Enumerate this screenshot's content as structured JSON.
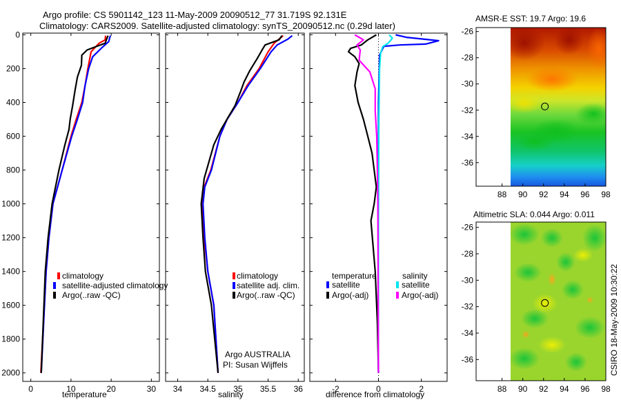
{
  "header": {
    "line1": "Argo profile: CS 5901142_123 11-May-2009 20090512_77 31.719S 92.131E",
    "line2": "Climatology: CARS2009. Satellite-adjusted climatology: synTS_20090512.nc (0.29d later)"
  },
  "colors": {
    "climatology": "#ff0000",
    "satellite": "#0000ff",
    "argo": "#000000",
    "sal_satellite": "#00e5ee",
    "sal_argo": "#ff00ff"
  },
  "chart_data": [
    {
      "type": "line",
      "id": "temperature",
      "xlabel": "temperature",
      "xlim": [
        -2,
        32
      ],
      "ylim": [
        2050,
        -10
      ],
      "xticks": [
        "0",
        "10",
        "20",
        "30"
      ],
      "yticks": [
        "0",
        "200",
        "400",
        "600",
        "800",
        "1000",
        "1200",
        "1400",
        "1600",
        "1800",
        "2000"
      ],
      "legend": [
        "climatology",
        "satellite-adjusted climatology",
        "Argo(..raw -QC)"
      ],
      "series": [
        {
          "name": "climatology",
          "color": "#ff0000",
          "x": [
            18.6,
            18.5,
            17.0,
            15.0,
            14.2,
            13.5,
            12.7,
            11.3,
            10.0,
            7.8,
            5.5,
            4.5,
            3.8,
            2.5
          ],
          "y": [
            5,
            30,
            50,
            100,
            200,
            300,
            400,
            500,
            600,
            800,
            1000,
            1200,
            1400,
            2000
          ]
        },
        {
          "name": "satellite",
          "color": "#0000ff",
          "x": [
            19.8,
            19.6,
            19.4,
            17.5,
            15.4,
            14.4,
            13.5,
            12.9,
            11.6,
            10.2,
            7.8,
            5.5,
            4.5,
            3.8,
            2.6
          ],
          "y": [
            5,
            20,
            40,
            80,
            130,
            200,
            300,
            400,
            500,
            600,
            800,
            1000,
            1200,
            1400,
            2000
          ]
        },
        {
          "name": "Argo",
          "color": "#000000",
          "x": [
            19.2,
            18.8,
            18.5,
            16.2,
            14.0,
            12.7,
            12.6,
            11.6,
            11.0,
            10.4,
            9.8,
            9.5,
            8.5,
            7.0,
            5.3,
            4.3,
            3.6,
            2.6
          ],
          "y": [
            5,
            30,
            50,
            70,
            90,
            120,
            180,
            250,
            330,
            420,
            500,
            560,
            650,
            800,
            1000,
            1200,
            1400,
            2000
          ]
        }
      ]
    },
    {
      "type": "line",
      "id": "salinity",
      "xlabel": "salinity",
      "xlim": [
        33.8,
        36.1
      ],
      "ylim": [
        2050,
        -10
      ],
      "xticks": [
        "34",
        "34.5",
        "35",
        "35.5",
        "36"
      ],
      "legend": [
        "climatology",
        "satellite adj. clim.",
        "Argo(..raw -QC)"
      ],
      "annotation": [
        "Argo AUSTRALIA",
        "PI: Susan Wijffels"
      ],
      "series": [
        {
          "name": "climatology",
          "color": "#ff0000",
          "x": [
            35.75,
            35.6,
            35.5,
            35.35,
            35.15,
            35.0,
            34.82,
            34.7,
            34.55,
            34.44,
            34.4,
            34.44,
            34.5,
            34.6,
            34.67
          ],
          "y": [
            5,
            50,
            100,
            200,
            300,
            400,
            500,
            600,
            800,
            900,
            1000,
            1200,
            1400,
            1600,
            2000
          ]
        },
        {
          "name": "satellite",
          "color": "#0000ff",
          "x": [
            35.9,
            35.83,
            35.65,
            35.55,
            35.37,
            35.17,
            35.0,
            34.82,
            34.7,
            34.56,
            34.45,
            34.42,
            34.45,
            34.5,
            34.6,
            34.67
          ],
          "y": [
            5,
            25,
            60,
            100,
            200,
            300,
            400,
            500,
            600,
            800,
            900,
            1000,
            1200,
            1400,
            1600,
            2000
          ]
        },
        {
          "name": "Argo",
          "color": "#000000",
          "x": [
            35.73,
            35.68,
            35.45,
            35.4,
            35.32,
            35.2,
            35.1,
            35.05,
            34.95,
            34.85,
            34.72,
            34.6,
            34.52,
            34.44,
            34.39,
            34.42,
            34.46,
            34.56,
            34.67
          ],
          "y": [
            5,
            30,
            60,
            90,
            140,
            210,
            280,
            330,
            420,
            480,
            560,
            650,
            750,
            850,
            1000,
            1200,
            1400,
            1600,
            2000
          ]
        }
      ]
    },
    {
      "type": "line",
      "id": "difference",
      "xlabel": "difference from climatology",
      "xlim": [
        -3.2,
        3.2
      ],
      "ylim": [
        2050,
        -10
      ],
      "xticks": [
        "-2",
        "0",
        "2"
      ],
      "legend_groups": [
        {
          "title": "temperature",
          "items": [
            "satellite",
            "Argo(-adj)"
          ]
        },
        {
          "title": "salinity",
          "items": [
            "satellite",
            "Argo(-adj)"
          ]
        }
      ],
      "series": [
        {
          "name": "temperature satellite",
          "color": "#0000ff",
          "x": [
            0.8,
            1.3,
            2.8,
            2.2,
            1.0,
            0.25,
            0.05,
            0.0,
            0.0,
            -0.02,
            0.0
          ],
          "y": [
            0,
            15,
            35,
            55,
            60,
            68,
            120,
            400,
            1000,
            1600,
            2000
          ]
        },
        {
          "name": "temperature Argo(-adj)",
          "color": "#000000",
          "x": [
            -0.1,
            -0.5,
            -0.8,
            -1.3,
            -1.4,
            -1.1,
            -0.9,
            -1.0,
            -1.1,
            -0.95,
            -0.7,
            -0.5,
            -0.3,
            -0.2,
            -0.1,
            -0.2,
            -0.35,
            -0.15,
            -0.05,
            0.0
          ],
          "y": [
            0,
            30,
            60,
            80,
            100,
            130,
            170,
            220,
            300,
            400,
            500,
            600,
            700,
            800,
            900,
            1000,
            1100,
            1400,
            1700,
            2000
          ]
        },
        {
          "name": "salinity satellite",
          "color": "#00e5ee",
          "x": [
            0.5,
            0.65,
            0.45,
            0.2,
            0.1,
            0.05,
            0.02,
            0.0,
            0.0
          ],
          "y": [
            0,
            20,
            50,
            70,
            110,
            200,
            500,
            1000,
            2000
          ]
        },
        {
          "name": "salinity Argo(-adj)",
          "color": "#ff00ff",
          "x": [
            -1.1,
            -0.7,
            -1.0,
            -0.85,
            -0.9,
            -0.4,
            -0.15,
            -0.15,
            -0.08,
            -0.05,
            -0.03,
            0.0
          ],
          "y": [
            0,
            30,
            60,
            90,
            150,
            220,
            320,
            450,
            600,
            800,
            1000,
            2000
          ]
        }
      ]
    },
    {
      "type": "heatmap",
      "id": "sst-map",
      "title": "AMSR-E SST: 19.7 Argo: 19.6",
      "xlim": [
        85.5,
        98
      ],
      "ylim": [
        -37.8,
        -25.7
      ],
      "xticks": [
        "88",
        "90",
        "92",
        "94",
        "96",
        "98"
      ],
      "yticks": [
        "-26",
        "-28",
        "-30",
        "-32",
        "-34",
        "-36"
      ],
      "data_xlim": [
        90,
        98
      ],
      "marker": {
        "lon": 92.131,
        "lat": -31.719
      }
    },
    {
      "type": "heatmap",
      "id": "sla-map",
      "title": "Altimetric SLA: 0.044 Argo: 0.011",
      "xlim": [
        85.5,
        98
      ],
      "ylim": [
        -37.6,
        -25.6
      ],
      "xticks": [
        "88",
        "90",
        "92",
        "94",
        "96",
        "98"
      ],
      "yticks": [
        "-26",
        "-28",
        "-30",
        "-32",
        "-34",
        "-36"
      ],
      "data_xlim": [
        90,
        98
      ],
      "marker": {
        "lon": 92.131,
        "lat": -31.719
      }
    }
  ],
  "credit": "CSIRO 18-May-2009 10:30:22"
}
